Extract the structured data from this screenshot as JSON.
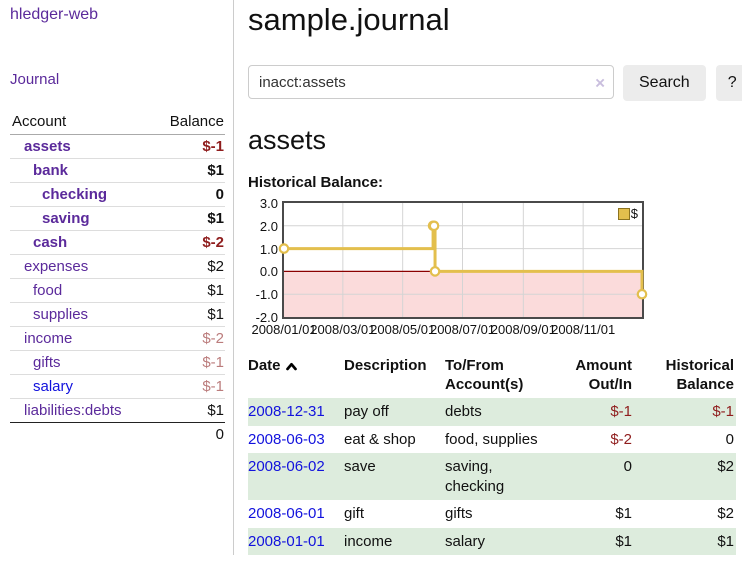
{
  "app": {
    "name": "hledger-web"
  },
  "colors": {
    "purple": "#5b2a9b",
    "blue": "#1212dd",
    "neg_strong": "#8f1d1d",
    "neg_muted": "#bb7c7c",
    "stripe": "#ddecdd",
    "chart_line": "#e3bf4d",
    "chart_negative_region": "#fbdbdb",
    "chart_zero_line": "#8b0000",
    "chart_grid": "#d4d4d4",
    "chart_border": "#4a4a4a"
  },
  "sidebar": {
    "journal_label": "Journal",
    "headers": [
      "Account",
      "Balance"
    ],
    "accounts": [
      {
        "account": "assets",
        "balance": "$-1",
        "indent": 1,
        "bold": true,
        "neg": "strong"
      },
      {
        "account": "bank",
        "balance": "$1",
        "indent": 2,
        "bold": true,
        "neg": ""
      },
      {
        "account": "checking",
        "balance": "0",
        "indent": 3,
        "bold": true,
        "neg": ""
      },
      {
        "account": "saving",
        "balance": "$1",
        "indent": 3,
        "bold": true,
        "neg": ""
      },
      {
        "account": "cash",
        "balance": "$-2",
        "indent": 2,
        "bold": true,
        "neg": "strong"
      },
      {
        "account": "expenses",
        "balance": "$2",
        "indent": 1,
        "bold": false,
        "neg": ""
      },
      {
        "account": "food",
        "balance": "$1",
        "indent": 2,
        "bold": false,
        "neg": ""
      },
      {
        "account": "supplies",
        "balance": "$1",
        "indent": 2,
        "bold": false,
        "neg": ""
      },
      {
        "account": "income",
        "balance": "$-2",
        "indent": 1,
        "bold": false,
        "neg": "muted"
      },
      {
        "account": "gifts",
        "balance": "$-1",
        "indent": 2,
        "bold": false,
        "neg": "muted"
      },
      {
        "account": "salary",
        "balance": "$-1",
        "indent": 2,
        "bold": false,
        "neg": "muted",
        "link": "blue"
      },
      {
        "account": "liabilities:debts",
        "balance": "$1",
        "indent": 1,
        "bold": false,
        "neg": ""
      }
    ],
    "total": "0"
  },
  "main": {
    "title": "sample.journal",
    "search": {
      "value": "inacct:assets",
      "clear_icon": "×",
      "button_label": "Search",
      "help_label": "?"
    },
    "account_heading": "assets"
  },
  "chart_data": {
    "type": "line",
    "title": "Historical Balance:",
    "step": true,
    "series": [
      {
        "name": "$",
        "points": [
          [
            "2008-01-01",
            1
          ],
          [
            "2008-06-01",
            2
          ],
          [
            "2008-06-02",
            2
          ],
          [
            "2008-06-03",
            0
          ],
          [
            "2008-12-31",
            -1
          ]
        ]
      }
    ],
    "x_range": [
      "2008-01-01",
      "2008-12-31"
    ],
    "x_ticks": [
      "2008/01/01",
      "2008/03/01",
      "2008/05/01",
      "2008/07/01",
      "2008/09/01",
      "2008/11/01"
    ],
    "y_ticks": [
      3.0,
      2.0,
      1.0,
      0.0,
      -1.0,
      -2.0
    ],
    "ylim": [
      -2,
      3
    ],
    "grid": true,
    "legend": {
      "label": "$",
      "position": "top-right"
    }
  },
  "register": {
    "sort": "ascending",
    "headers": {
      "date": "Date",
      "description": "Description",
      "accounts": "To/From Account(s)",
      "amount": "Amount Out/In",
      "balance": "Historical Balance"
    },
    "rows": [
      {
        "date": "2008-12-31",
        "description": "pay off",
        "accounts": "debts",
        "amount": "$-1",
        "balance": "$-1"
      },
      {
        "date": "2008-06-03",
        "description": "eat & shop",
        "accounts": "food, supplies",
        "amount": "$-2",
        "balance": "0"
      },
      {
        "date": "2008-06-02",
        "description": "save",
        "accounts": "saving, checking",
        "amount": "0",
        "balance": "$2"
      },
      {
        "date": "2008-06-01",
        "description": "gift",
        "accounts": "gifts",
        "amount": "$1",
        "balance": "$2"
      },
      {
        "date": "2008-01-01",
        "description": "income",
        "accounts": "salary",
        "amount": "$1",
        "balance": "$1"
      }
    ]
  }
}
